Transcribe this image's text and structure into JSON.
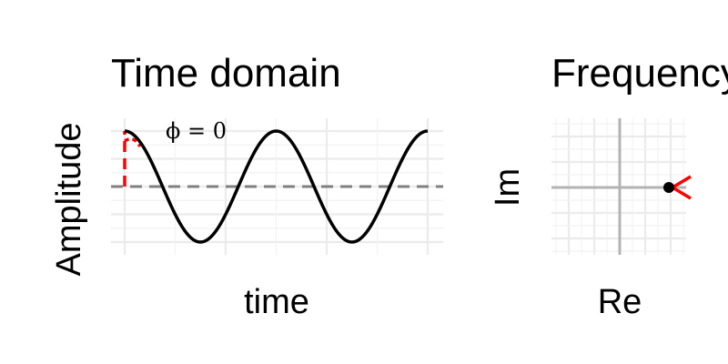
{
  "chart_data": [
    {
      "type": "line",
      "title": "Time domain",
      "xlabel": "time",
      "ylabel": "Amplitude",
      "grid": true,
      "xlim": [
        0,
        1
      ],
      "ylim": [
        -1.05,
        1.05
      ],
      "series": [
        {
          "style": "solid",
          "color": "#000000",
          "function": "cos",
          "cycles": 2,
          "phase": 0,
          "amplitude": 1
        }
      ],
      "reference_lines": [
        {
          "orientation": "horizontal",
          "y": 0,
          "style": "dashed",
          "color": "#808080"
        }
      ],
      "phase_indicator": {
        "color": "#ff0000",
        "style": "dashed",
        "x": 0,
        "from_y": 0,
        "to_y": 1
      },
      "annotations": [
        {
          "text": "ϕ = 0",
          "x": 0.16,
          "y": 0.98
        }
      ]
    },
    {
      "type": "scatter",
      "title": "Frequency domain",
      "xlabel": "Re",
      "ylabel": "Im",
      "grid": true,
      "xlim": [
        -1.2,
        1.2
      ],
      "ylim": [
        -1.2,
        1.2
      ],
      "axes_through_origin": true,
      "points": [
        {
          "x": 1,
          "y": 0,
          "color": "#000000"
        }
      ],
      "phasor": {
        "color": "#ff0000",
        "x": 1,
        "y": 0
      }
    }
  ]
}
